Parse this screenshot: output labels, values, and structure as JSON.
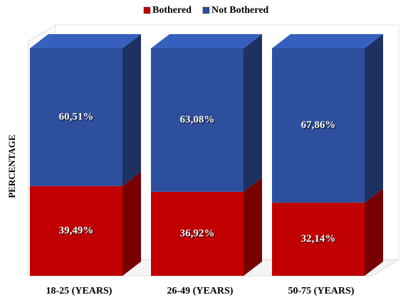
{
  "chart_data": {
    "type": "bar",
    "stacked": true,
    "y_label": "PERCENTAGE",
    "categories": [
      "18-25 (YEARS)",
      "26-49 (YEARS)",
      "50-75 (YEARS)"
    ],
    "series": [
      {
        "name": "Bothered",
        "color": "#c00000",
        "values": [
          39.49,
          36.92,
          32.14
        ],
        "value_labels": [
          "39,49%",
          "36,92%",
          "32,14%"
        ]
      },
      {
        "name": "Not Bothered",
        "color": "#2e4f9e",
        "values": [
          60.51,
          63.08,
          67.86
        ],
        "value_labels": [
          "60,51%",
          "63,08%",
          "67,86%"
        ]
      }
    ],
    "ylim": [
      0,
      100
    ],
    "legend": "top"
  }
}
